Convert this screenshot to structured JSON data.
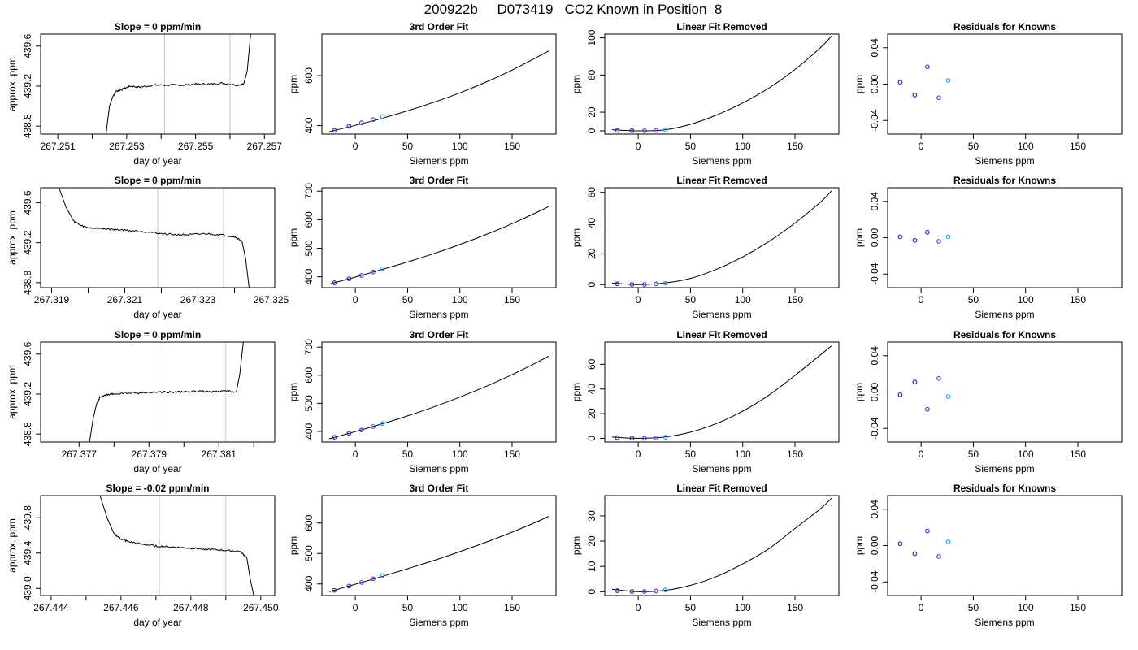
{
  "page_title": "200922b     D073419   CO2 Known in Position  8",
  "chart_data": [
    {
      "type": "line",
      "title": "Slope =  0  ppm/min",
      "xlabel": "day of year",
      "ylabel": "approx. ppm",
      "xlim": [
        267.2505,
        267.2573
      ],
      "ylim": [
        438.72,
        439.72
      ],
      "xticks": [
        267.251,
        267.252,
        267.253,
        267.254,
        267.255,
        267.256,
        267.257
      ],
      "xtick_labels": [
        "267.251",
        "",
        "267.253",
        "",
        "267.255",
        "",
        "267.257"
      ],
      "yticks": [
        438.8,
        439.2,
        439.6
      ],
      "ytick_labels": [
        "438.8",
        "439.2",
        "439.6"
      ],
      "vlines": [
        267.2541,
        267.256
      ],
      "series": [
        {
          "x": [
            267.2524,
            267.2525,
            267.2526,
            267.2527,
            267.2529,
            267.2531,
            267.2534,
            267.2538,
            267.2542,
            267.2546,
            267.255,
            267.2554,
            267.2558,
            267.2562,
            267.2564,
            267.2565,
            267.2566
          ],
          "y": [
            438.72,
            439.0,
            439.1,
            439.15,
            439.17,
            439.2,
            439.19,
            439.21,
            439.21,
            439.21,
            439.22,
            439.22,
            439.23,
            439.21,
            439.22,
            439.35,
            439.72
          ]
        }
      ]
    },
    {
      "type": "line",
      "title": "3rd Order Fit",
      "xlabel": "Siemens ppm",
      "ylabel": "ppm",
      "xlim": [
        -32,
        192
      ],
      "ylim": [
        366,
        766
      ],
      "xticks": [
        0,
        50,
        100,
        150
      ],
      "xtick_labels": [
        "0",
        "50",
        "100",
        "150"
      ],
      "yticks": [
        400,
        600
      ],
      "ytick_labels": [
        "400",
        "600"
      ],
      "series": [
        {
          "type": "curve",
          "x": [
            -25,
            0,
            25,
            50,
            75,
            100,
            125,
            150,
            175,
            185
          ],
          "y": [
            375.5,
            401,
            428.5,
            459,
            493,
            531,
            574,
            622,
            676,
            699
          ]
        },
        {
          "type": "points",
          "x": [
            -20,
            -6,
            6,
            17,
            26
          ],
          "y": [
            381,
            397,
            411,
            424,
            436
          ]
        }
      ]
    },
    {
      "type": "line",
      "title": "Linear Fit Removed",
      "xlabel": "Siemens ppm",
      "ylabel": "ppm",
      "xlim": [
        -32,
        192
      ],
      "ylim": [
        -3.5,
        104
      ],
      "xticks": [
        0,
        50,
        100,
        150
      ],
      "xtick_labels": [
        "0",
        "50",
        "100",
        "150"
      ],
      "yticks": [
        0,
        20,
        60,
        100
      ],
      "ytick_labels": [
        "0",
        "20",
        "60",
        "100"
      ],
      "series": [
        {
          "type": "curve",
          "x": [
            -25,
            0,
            25,
            50,
            75,
            100,
            125,
            150,
            175,
            185
          ],
          "y": [
            1.2,
            0,
            1,
            7,
            17,
            30,
            46,
            66,
            90,
            102
          ]
        },
        {
          "type": "points",
          "x": [
            -20,
            -6,
            6,
            17,
            26
          ],
          "y": [
            0.5,
            0.2,
            0.1,
            0.4,
            0.8
          ]
        }
      ]
    },
    {
      "type": "scatter",
      "title": "Residuals for Knowns",
      "xlabel": "Siemens ppm",
      "ylabel": "ppm",
      "xlim": [
        -32,
        192
      ],
      "ylim": [
        -0.055,
        0.055
      ],
      "xticks": [
        0,
        50,
        100,
        150
      ],
      "xtick_labels": [
        "0",
        "50",
        "100",
        "150"
      ],
      "yticks": [
        -0.04,
        0,
        0.04
      ],
      "ytick_labels": [
        "-0.04",
        "0.00",
        "0.04"
      ],
      "series": [
        {
          "x": [
            -20,
            -6,
            6,
            17,
            26
          ],
          "y": [
            0.002,
            -0.012,
            0.019,
            -0.015,
            0.004
          ]
        }
      ]
    },
    {
      "type": "line",
      "title": "Slope =  0  ppm/min",
      "xlabel": "day of year",
      "ylabel": "approx. ppm",
      "xlim": [
        267.3187,
        267.3251
      ],
      "ylim": [
        438.75,
        439.75
      ],
      "xticks": [
        267.319,
        267.32,
        267.321,
        267.322,
        267.323,
        267.324,
        267.325
      ],
      "xtick_labels": [
        "267.319",
        "",
        "267.321",
        "",
        "267.323",
        "",
        "267.325"
      ],
      "yticks": [
        438.8,
        439.2,
        439.6
      ],
      "ytick_labels": [
        "438.8",
        "439.2",
        "439.6"
      ],
      "vlines": [
        267.3219,
        267.3237
      ],
      "series": [
        {
          "x": [
            267.3192,
            267.3194,
            267.3196,
            267.3198,
            267.32,
            267.3204,
            267.3208,
            267.3212,
            267.3216,
            267.322,
            267.3224,
            267.3228,
            267.3232,
            267.3236,
            267.324,
            267.3242,
            267.3243,
            267.3244
          ],
          "y": [
            439.75,
            439.55,
            439.42,
            439.37,
            439.35,
            439.34,
            439.33,
            439.32,
            439.31,
            439.29,
            439.28,
            439.28,
            439.29,
            439.28,
            439.26,
            439.22,
            439.05,
            438.75
          ]
        }
      ]
    },
    {
      "type": "line",
      "title": "3rd Order Fit",
      "xlabel": "Siemens ppm",
      "ylabel": "ppm",
      "xlim": [
        -32,
        192
      ],
      "ylim": [
        362,
        712
      ],
      "xticks": [
        0,
        50,
        100,
        150
      ],
      "xtick_labels": [
        "0",
        "50",
        "100",
        "150"
      ],
      "yticks": [
        400,
        500,
        600,
        700
      ],
      "ytick_labels": [
        "400",
        "500",
        "600",
        "700"
      ],
      "series": [
        {
          "type": "curve",
          "x": [
            -25,
            0,
            25,
            50,
            75,
            100,
            125,
            150,
            175,
            185
          ],
          "y": [
            374.5,
            399,
            425,
            452,
            481,
            513,
            548,
            586,
            628,
            646
          ]
        },
        {
          "type": "points",
          "x": [
            -20,
            -6,
            6,
            17,
            26
          ],
          "y": [
            379,
            393,
            405,
            417,
            428
          ]
        }
      ]
    },
    {
      "type": "line",
      "title": "Linear Fit Removed",
      "xlabel": "Siemens ppm",
      "ylabel": "ppm",
      "xlim": [
        -32,
        192
      ],
      "ylim": [
        -2,
        63
      ],
      "xticks": [
        0,
        50,
        100,
        150
      ],
      "xtick_labels": [
        "0",
        "50",
        "100",
        "150"
      ],
      "yticks": [
        0,
        20,
        40,
        60
      ],
      "ytick_labels": [
        "0",
        "20",
        "40",
        "60"
      ],
      "series": [
        {
          "type": "curve",
          "x": [
            -25,
            0,
            25,
            50,
            75,
            100,
            125,
            150,
            175,
            185
          ],
          "y": [
            1,
            0,
            1,
            4,
            10,
            18,
            28,
            40,
            54,
            61
          ]
        },
        {
          "type": "points",
          "x": [
            -20,
            -6,
            6,
            17,
            26
          ],
          "y": [
            0.5,
            0.1,
            0.1,
            0.4,
            0.9
          ]
        }
      ]
    },
    {
      "type": "scatter",
      "title": "Residuals for Knowns",
      "xlabel": "Siemens ppm",
      "ylabel": "ppm",
      "xlim": [
        -32,
        192
      ],
      "ylim": [
        -0.055,
        0.055
      ],
      "xticks": [
        0,
        50,
        100,
        150
      ],
      "xtick_labels": [
        "0",
        "50",
        "100",
        "150"
      ],
      "yticks": [
        -0.04,
        0,
        0.04
      ],
      "ytick_labels": [
        "-0.04",
        "0.00",
        "0.04"
      ],
      "series": [
        {
          "x": [
            -20,
            -6,
            6,
            17,
            26
          ],
          "y": [
            0.001,
            -0.003,
            0.006,
            -0.004,
            0.001
          ]
        }
      ]
    },
    {
      "type": "line",
      "title": "Slope =  0  ppm/min",
      "xlabel": "day of year",
      "ylabel": "approx. ppm",
      "xlim": [
        267.3759,
        267.3826
      ],
      "ylim": [
        438.72,
        439.72
      ],
      "xticks": [
        267.377,
        267.378,
        267.379,
        267.38,
        267.381,
        267.382
      ],
      "xtick_labels": [
        "267.377",
        "",
        "267.379",
        "",
        "267.381",
        ""
      ],
      "yticks": [
        438.8,
        439.2,
        439.6
      ],
      "ytick_labels": [
        "438.8",
        "439.2",
        "439.6"
      ],
      "vlines": [
        267.3794,
        267.3812
      ],
      "series": [
        {
          "x": [
            267.3773,
            267.3774,
            267.3775,
            267.3776,
            267.3778,
            267.378,
            267.3784,
            267.3788,
            267.3792,
            267.3796,
            267.38,
            267.3804,
            267.3808,
            267.3812,
            267.3815,
            267.3816,
            267.3817
          ],
          "y": [
            438.72,
            438.95,
            439.1,
            439.17,
            439.19,
            439.2,
            439.21,
            439.21,
            439.22,
            439.22,
            439.22,
            439.23,
            439.22,
            439.23,
            439.22,
            439.4,
            439.72
          ]
        }
      ]
    },
    {
      "type": "line",
      "title": "3rd Order Fit",
      "xlabel": "Siemens ppm",
      "ylabel": "ppm",
      "xlim": [
        -32,
        192
      ],
      "ylim": [
        362,
        718
      ],
      "xticks": [
        0,
        50,
        100,
        150
      ],
      "xtick_labels": [
        "0",
        "50",
        "100",
        "150"
      ],
      "yticks": [
        400,
        500,
        600,
        700
      ],
      "ytick_labels": [
        "400",
        "500",
        "600",
        "700"
      ],
      "series": [
        {
          "type": "curve",
          "x": [
            -25,
            0,
            25,
            50,
            75,
            100,
            125,
            150,
            175,
            185
          ],
          "y": [
            373.5,
            399,
            426,
            455,
            487,
            522,
            560,
            602,
            648,
            668
          ]
        },
        {
          "type": "points",
          "x": [
            -20,
            -6,
            6,
            17,
            26
          ],
          "y": [
            379,
            393,
            405,
            417,
            428
          ]
        }
      ]
    },
    {
      "type": "line",
      "title": "Linear Fit Removed",
      "xlabel": "Siemens ppm",
      "ylabel": "ppm",
      "xlim": [
        -32,
        192
      ],
      "ylim": [
        -3,
        78
      ],
      "xticks": [
        0,
        50,
        100,
        150
      ],
      "xtick_labels": [
        "0",
        "50",
        "100",
        "150"
      ],
      "yticks": [
        0,
        20,
        40,
        60
      ],
      "ytick_labels": [
        "0",
        "20",
        "40",
        "60"
      ],
      "series": [
        {
          "type": "curve",
          "x": [
            -25,
            0,
            25,
            50,
            75,
            100,
            125,
            150,
            175,
            185
          ],
          "y": [
            1,
            0,
            1,
            5,
            12,
            22,
            35,
            51,
            68,
            75
          ]
        },
        {
          "type": "points",
          "x": [
            -20,
            -6,
            6,
            17,
            26
          ],
          "y": [
            0.5,
            0.1,
            0.1,
            0.4,
            0.9
          ]
        }
      ]
    },
    {
      "type": "scatter",
      "title": "Residuals for Knowns",
      "xlabel": "Siemens ppm",
      "ylabel": "ppm",
      "xlim": [
        -32,
        192
      ],
      "ylim": [
        -0.055,
        0.055
      ],
      "xticks": [
        0,
        50,
        100,
        150
      ],
      "xtick_labels": [
        "0",
        "50",
        "100",
        "150"
      ],
      "yticks": [
        -0.04,
        0,
        0.04
      ],
      "ytick_labels": [
        "-0.04",
        "0.00",
        "0.04"
      ],
      "series": [
        {
          "x": [
            -20,
            -6,
            6,
            17,
            26
          ],
          "y": [
            -0.003,
            0.011,
            -0.019,
            0.015,
            -0.005
          ]
        }
      ]
    },
    {
      "type": "line",
      "title": "Slope =  -0.02  ppm/min",
      "xlabel": "day of year",
      "ylabel": "approx. ppm",
      "xlim": [
        267.4437,
        267.4504
      ],
      "ylim": [
        438.92,
        440.05
      ],
      "xticks": [
        267.444,
        267.445,
        267.446,
        267.447,
        267.448,
        267.449,
        267.45
      ],
      "xtick_labels": [
        "267.444",
        "",
        "267.446",
        "",
        "267.448",
        "",
        "267.450"
      ],
      "yticks": [
        439.0,
        439.4,
        439.8
      ],
      "ytick_labels": [
        "439.0",
        "439.4",
        "439.8"
      ],
      "vlines": [
        267.4471,
        267.449
      ],
      "series": [
        {
          "x": [
            267.4454,
            267.4456,
            267.4458,
            267.446,
            267.4462,
            267.4466,
            267.447,
            267.4474,
            267.4478,
            267.4482,
            267.4486,
            267.449,
            267.4494,
            267.4496,
            267.4497,
            267.4498
          ],
          "y": [
            440.05,
            439.8,
            439.62,
            439.56,
            439.53,
            439.5,
            439.48,
            439.47,
            439.46,
            439.45,
            439.44,
            439.43,
            439.42,
            439.35,
            439.1,
            438.92
          ]
        }
      ]
    },
    {
      "type": "line",
      "title": "3rd Order Fit",
      "xlabel": "Siemens ppm",
      "ylabel": "ppm",
      "xlim": [
        -32,
        192
      ],
      "ylim": [
        362,
        690
      ],
      "xticks": [
        0,
        50,
        100,
        150
      ],
      "xtick_labels": [
        "0",
        "50",
        "100",
        "150"
      ],
      "yticks": [
        400,
        500,
        600
      ],
      "ytick_labels": [
        "400",
        "500",
        "600"
      ],
      "series": [
        {
          "type": "curve",
          "x": [
            -25,
            0,
            25,
            50,
            75,
            100,
            125,
            150,
            175,
            185
          ],
          "y": [
            374.5,
            399,
            424,
            450,
            477,
            506,
            537,
            570,
            606,
            622
          ]
        },
        {
          "type": "points",
          "x": [
            -20,
            -6,
            6,
            17,
            26
          ],
          "y": [
            379,
            393,
            405,
            417,
            428
          ]
        }
      ]
    },
    {
      "type": "line",
      "title": "Linear Fit Removed",
      "xlabel": "Siemens ppm",
      "ylabel": "ppm",
      "xlim": [
        -32,
        192
      ],
      "ylim": [
        -1.5,
        38
      ],
      "xticks": [
        0,
        50,
        100,
        150
      ],
      "xtick_labels": [
        "0",
        "50",
        "100",
        "150"
      ],
      "yticks": [
        0,
        10,
        20,
        30
      ],
      "ytick_labels": [
        "0",
        "10",
        "20",
        "30"
      ],
      "series": [
        {
          "type": "curve",
          "x": [
            -25,
            0,
            25,
            50,
            75,
            100,
            125,
            150,
            175,
            185
          ],
          "y": [
            1,
            0,
            0.5,
            2.5,
            6,
            11,
            17,
            25,
            33,
            37
          ]
        },
        {
          "type": "points",
          "x": [
            -20,
            -6,
            6,
            17,
            26
          ],
          "y": [
            0.4,
            0.1,
            0.1,
            0.3,
            0.7
          ]
        }
      ]
    },
    {
      "type": "scatter",
      "title": "Residuals for Knowns",
      "xlabel": "Siemens ppm",
      "ylabel": "ppm",
      "xlim": [
        -32,
        192
      ],
      "ylim": [
        -0.055,
        0.055
      ],
      "xticks": [
        0,
        50,
        100,
        150
      ],
      "xtick_labels": [
        "0",
        "50",
        "100",
        "150"
      ],
      "yticks": [
        -0.04,
        0,
        0.04
      ],
      "ytick_labels": [
        "-0.04",
        "0.00",
        "0.04"
      ],
      "series": [
        {
          "x": [
            -20,
            -6,
            6,
            17,
            26
          ],
          "y": [
            0.002,
            -0.009,
            0.016,
            -0.012,
            0.004
          ]
        }
      ]
    }
  ]
}
